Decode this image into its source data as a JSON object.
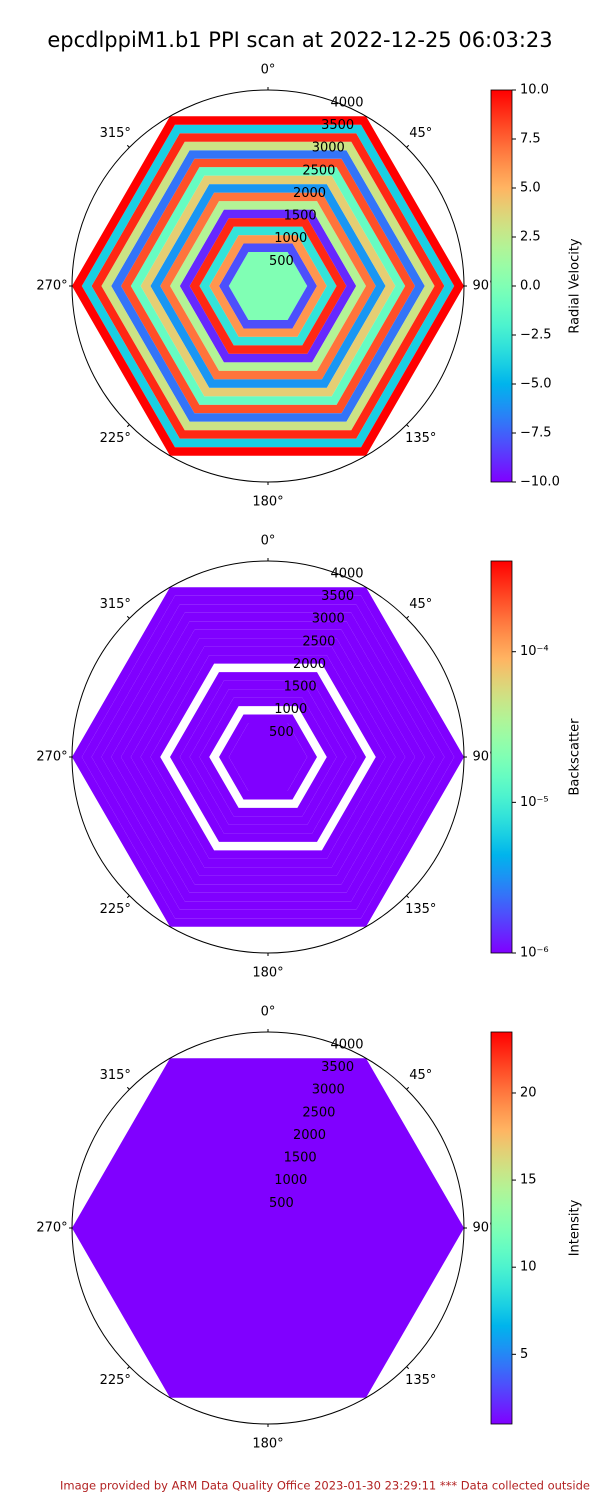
{
  "title": "epcdlppiM1.b1 PPI scan at 2022-12-25 06:03:23",
  "footer": "Image provided by ARM Data Quality Office 2023-01-30 23:29:11    *** Data collected outside",
  "chart_data": [
    {
      "type": "polar",
      "colormap": "rainbow",
      "colorbar_label": "Radial Velocity",
      "rlim": [
        0,
        4000
      ],
      "rticks": [
        500,
        1000,
        1500,
        2000,
        2500,
        3000,
        3500,
        4000
      ],
      "thetaticks": [
        {
          "value": 0,
          "label": "0°"
        },
        {
          "value": 45,
          "label": "45°"
        },
        {
          "value": 90,
          "label": "90°"
        },
        {
          "value": 135,
          "label": "135°"
        },
        {
          "value": 180,
          "label": "180°"
        },
        {
          "value": 225,
          "label": "225°"
        },
        {
          "value": 270,
          "label": "270°"
        },
        {
          "value": 315,
          "label": "315°"
        }
      ],
      "clim": [
        -10,
        10
      ],
      "cscale": "linear",
      "cticks": [
        {
          "value": -10,
          "label": "−10.0"
        },
        {
          "value": -7.5,
          "label": "−7.5"
        },
        {
          "value": -5,
          "label": "−5.0"
        },
        {
          "value": -2.5,
          "label": "−2.5"
        },
        {
          "value": 0,
          "label": "0.0"
        },
        {
          "value": 2.5,
          "label": "2.5"
        },
        {
          "value": 5,
          "label": "5.0"
        },
        {
          "value": 7.5,
          "label": "7.5"
        },
        {
          "value": 10,
          "label": "10.0"
        }
      ],
      "rings": {
        "ranges": [
          0,
          800,
          1000,
          1200,
          1400,
          1600,
          1800,
          2000,
          2200,
          2400,
          2600,
          2800,
          3000,
          3200,
          3400,
          3600,
          3800,
          4000
        ],
        "values": [
          0,
          -8,
          6,
          -3,
          9,
          -9,
          2,
          7,
          -6,
          4,
          -1,
          8,
          -7,
          3,
          9,
          -4,
          10
        ]
      }
    },
    {
      "type": "polar",
      "colormap": "rainbow",
      "colorbar_label": "Backscatter",
      "rlim": [
        0,
        4000
      ],
      "rticks": [
        500,
        1000,
        1500,
        2000,
        2500,
        3000,
        3500,
        4000
      ],
      "thetaticks": [
        {
          "value": 0,
          "label": "0°"
        },
        {
          "value": 45,
          "label": "45°"
        },
        {
          "value": 90,
          "label": "90°"
        },
        {
          "value": 135,
          "label": "135°"
        },
        {
          "value": 180,
          "label": "180°"
        },
        {
          "value": 225,
          "label": "225°"
        },
        {
          "value": 270,
          "label": "270°"
        },
        {
          "value": 315,
          "label": "315°"
        }
      ],
      "clim": [
        1e-06,
        0.0004
      ],
      "cscale": "log",
      "cticks": [
        {
          "value": 1e-06,
          "label": "10⁻⁶"
        },
        {
          "value": 1e-05,
          "label": "10⁻⁵"
        },
        {
          "value": 0.0001,
          "label": "10⁻⁴"
        }
      ],
      "rings": {
        "ranges": [
          0,
          800,
          1000,
          1200,
          1400,
          1600,
          1800,
          2000,
          2200,
          2400,
          2600,
          2800,
          3000,
          3200,
          3400,
          3600,
          3800,
          4000
        ],
        "values": [
          1e-06,
          1e-06,
          null,
          1e-06,
          1e-06,
          1e-06,
          1e-06,
          null,
          1e-06,
          1e-06,
          1e-06,
          1e-06,
          1e-06,
          1e-06,
          1e-06,
          1e-06,
          1e-06
        ]
      }
    },
    {
      "type": "polar",
      "colormap": "rainbow",
      "colorbar_label": "Intensity",
      "rlim": [
        0,
        4000
      ],
      "rticks": [
        500,
        1000,
        1500,
        2000,
        2500,
        3000,
        3500,
        4000
      ],
      "thetaticks": [
        {
          "value": 0,
          "label": "0°"
        },
        {
          "value": 45,
          "label": "45°"
        },
        {
          "value": 90,
          "label": "90°"
        },
        {
          "value": 135,
          "label": "135°"
        },
        {
          "value": 180,
          "label": "180°"
        },
        {
          "value": 225,
          "label": "225°"
        },
        {
          "value": 270,
          "label": "270°"
        },
        {
          "value": 315,
          "label": "315°"
        }
      ],
      "clim": [
        1,
        23.5
      ],
      "cscale": "linear",
      "cticks": [
        5,
        10,
        15,
        20
      ],
      "rings": {
        "ranges": [
          0,
          4000
        ],
        "values": [
          1
        ]
      }
    }
  ]
}
